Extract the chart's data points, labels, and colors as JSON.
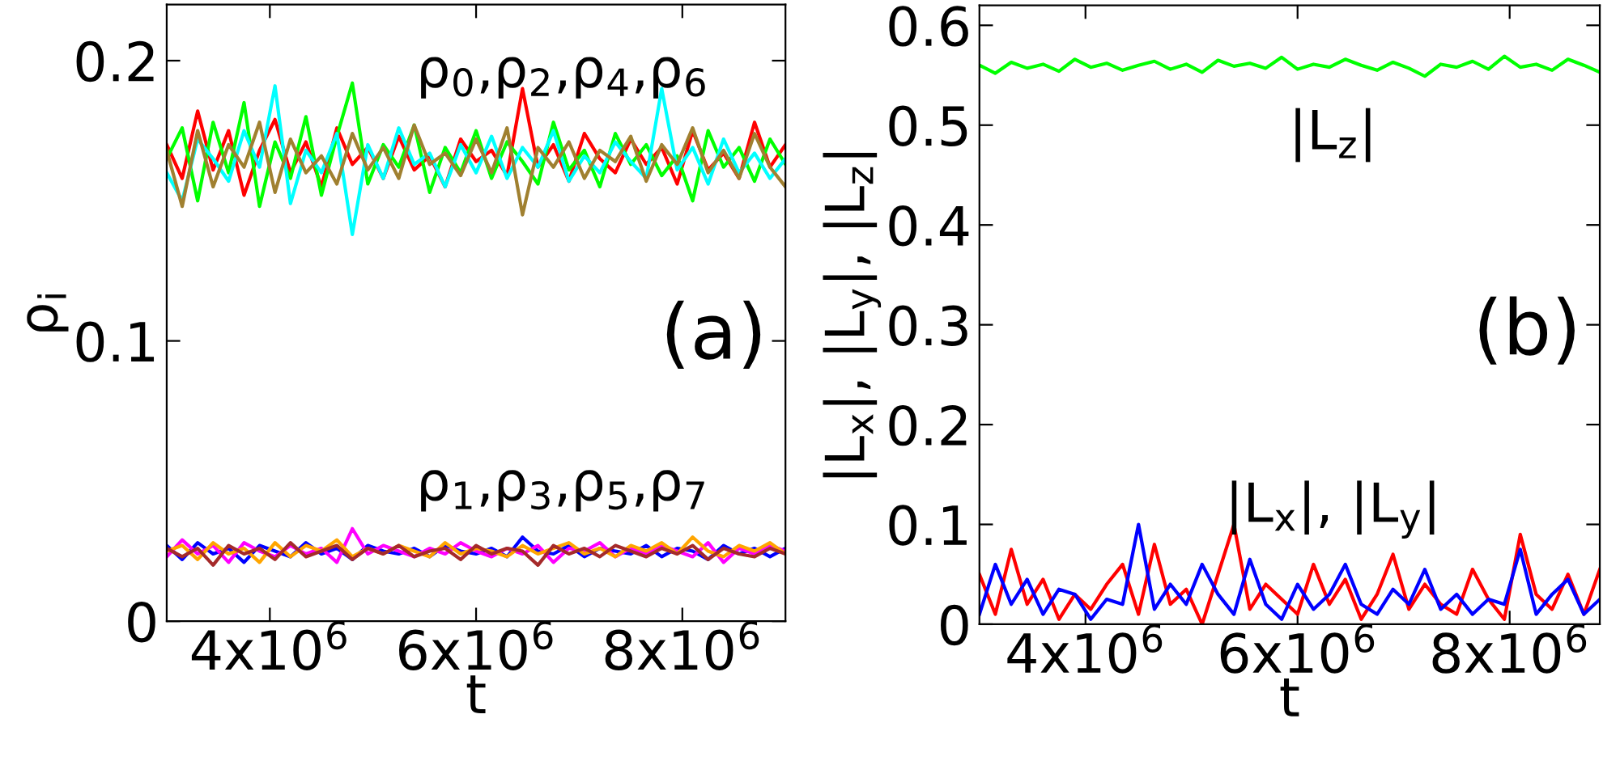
{
  "chart_data": [
    {
      "type": "line",
      "xlabel": "t",
      "ylabel": "ρ$_{i}$",
      "x": [
        3000000,
        3150000,
        3300000,
        3450000,
        3600000,
        3750000,
        3900000,
        4050000,
        4200000,
        4350000,
        4500000,
        4650000,
        4800000,
        4950000,
        5100000,
        5250000,
        5400000,
        5550000,
        5700000,
        5850000,
        6000000,
        6150000,
        6300000,
        6450000,
        6600000,
        6750000,
        6900000,
        7050000,
        7200000,
        7350000,
        7500000,
        7650000,
        7800000,
        7950000,
        8100000,
        8250000,
        8400000,
        8550000,
        8700000,
        8850000,
        9000000
      ],
      "series": [
        {
          "color": "#ff0000",
          "values": [
            0.17,
            0.158,
            0.182,
            0.161,
            0.175,
            0.152,
            0.168,
            0.179,
            0.16,
            0.171,
            0.155,
            0.176,
            0.163,
            0.169,
            0.158,
            0.173,
            0.161,
            0.166,
            0.155,
            0.172,
            0.164,
            0.168,
            0.159,
            0.19,
            0.162,
            0.17,
            0.157,
            0.174,
            0.165,
            0.16,
            0.172,
            0.163,
            0.169,
            0.156,
            0.175,
            0.161,
            0.167,
            0.158,
            0.178,
            0.162,
            0.17
          ]
        },
        {
          "color": "#00ff00",
          "values": [
            0.165,
            0.176,
            0.15,
            0.178,
            0.16,
            0.185,
            0.148,
            0.171,
            0.158,
            0.18,
            0.152,
            0.173,
            0.192,
            0.156,
            0.17,
            0.162,
            0.177,
            0.153,
            0.169,
            0.16,
            0.175,
            0.158,
            0.171,
            0.164,
            0.156,
            0.178,
            0.161,
            0.168,
            0.155,
            0.174,
            0.163,
            0.17,
            0.159,
            0.166,
            0.15,
            0.175,
            0.162,
            0.169,
            0.157,
            0.172,
            0.163
          ]
        },
        {
          "color": "#00ffff",
          "values": [
            0.16,
            0.15,
            0.172,
            0.165,
            0.157,
            0.175,
            0.162,
            0.191,
            0.149,
            0.168,
            0.16,
            0.174,
            0.138,
            0.17,
            0.158,
            0.176,
            0.163,
            0.167,
            0.155,
            0.17,
            0.16,
            0.173,
            0.158,
            0.169,
            0.162,
            0.175,
            0.157,
            0.166,
            0.16,
            0.171,
            0.164,
            0.158,
            0.19,
            0.161,
            0.169,
            0.156,
            0.172,
            0.16,
            0.167,
            0.158,
            0.165
          ]
        },
        {
          "color": "#a08030",
          "values": [
            0.168,
            0.148,
            0.175,
            0.155,
            0.17,
            0.162,
            0.178,
            0.153,
            0.172,
            0.16,
            0.166,
            0.156,
            0.174,
            0.161,
            0.169,
            0.158,
            0.177,
            0.163,
            0.167,
            0.159,
            0.172,
            0.16,
            0.176,
            0.145,
            0.169,
            0.162,
            0.171,
            0.158,
            0.168,
            0.164,
            0.173,
            0.157,
            0.17,
            0.163,
            0.176,
            0.16,
            0.168,
            0.158,
            0.174,
            0.162,
            0.155
          ]
        },
        {
          "color": "#0000ff",
          "values": [
            0.027,
            0.022,
            0.028,
            0.024,
            0.026,
            0.021,
            0.027,
            0.025,
            0.023,
            0.028,
            0.024,
            0.026,
            0.022,
            0.027,
            0.025,
            0.024,
            0.026,
            0.023,
            0.027,
            0.025,
            0.024,
            0.026,
            0.023,
            0.03,
            0.025,
            0.024,
            0.027,
            0.023,
            0.026,
            0.025,
            0.024,
            0.027,
            0.023,
            0.026,
            0.025,
            0.022,
            0.027,
            0.024,
            0.026,
            0.023,
            0.026
          ]
        },
        {
          "color": "#ff00ff",
          "values": [
            0.023,
            0.029,
            0.024,
            0.027,
            0.021,
            0.028,
            0.025,
            0.023,
            0.027,
            0.024,
            0.026,
            0.021,
            0.033,
            0.024,
            0.027,
            0.025,
            0.023,
            0.026,
            0.024,
            0.028,
            0.025,
            0.023,
            0.026,
            0.024,
            0.027,
            0.021,
            0.026,
            0.025,
            0.028,
            0.023,
            0.026,
            0.024,
            0.027,
            0.025,
            0.023,
            0.028,
            0.021,
            0.026,
            0.024,
            0.027,
            0.025
          ]
        },
        {
          "color": "#ffa500",
          "values": [
            0.025,
            0.027,
            0.022,
            0.028,
            0.024,
            0.026,
            0.021,
            0.028,
            0.023,
            0.027,
            0.025,
            0.029,
            0.023,
            0.026,
            0.024,
            0.027,
            0.025,
            0.023,
            0.028,
            0.024,
            0.026,
            0.025,
            0.023,
            0.027,
            0.024,
            0.026,
            0.028,
            0.024,
            0.026,
            0.023,
            0.027,
            0.025,
            0.028,
            0.024,
            0.03,
            0.025,
            0.023,
            0.027,
            0.025,
            0.028,
            0.024
          ]
        },
        {
          "color": "#a52a2a",
          "values": [
            0.026,
            0.023,
            0.026,
            0.02,
            0.027,
            0.024,
            0.026,
            0.022,
            0.028,
            0.023,
            0.025,
            0.027,
            0.022,
            0.026,
            0.024,
            0.027,
            0.023,
            0.025,
            0.026,
            0.022,
            0.027,
            0.024,
            0.026,
            0.025,
            0.02,
            0.027,
            0.024,
            0.026,
            0.023,
            0.027,
            0.025,
            0.023,
            0.026,
            0.024,
            0.027,
            0.022,
            0.026,
            0.024,
            0.023,
            0.026,
            0.024
          ]
        }
      ],
      "xlim": [
        3000000,
        9000000
      ],
      "xticks": [
        {
          "value": 4000000,
          "label": "4x10$^{6}$"
        },
        {
          "value": 6000000,
          "label": "6x10$^{6}$"
        },
        {
          "value": 8000000,
          "label": "8x10$^{6}$"
        }
      ],
      "ylim": [
        0,
        0.22
      ],
      "yticks": [
        0,
        0.1,
        0.2
      ],
      "annotations": [
        "ρ$_{0}$,ρ$_{2}$,ρ$_{4}$,ρ$_{6}$",
        "ρ$_{1}$,ρ$_{3}$,ρ$_{5}$,ρ$_{7}$",
        "(a)"
      ]
    },
    {
      "type": "line",
      "xlabel": "t",
      "ylabel": "|L$_{x}$|, |L$_{y}$|, |L$_{z}$|",
      "x": [
        3000000,
        3150000,
        3300000,
        3450000,
        3600000,
        3750000,
        3900000,
        4050000,
        4200000,
        4350000,
        4500000,
        4650000,
        4800000,
        4950000,
        5100000,
        5250000,
        5400000,
        5550000,
        5700000,
        5850000,
        6000000,
        6150000,
        6300000,
        6450000,
        6600000,
        6750000,
        6900000,
        7050000,
        7200000,
        7350000,
        7500000,
        7650000,
        7800000,
        7950000,
        8100000,
        8250000,
        8400000,
        8550000,
        8700000,
        8850000
      ],
      "series": [
        {
          "color": "#00ff00",
          "values": [
            0.56,
            0.552,
            0.563,
            0.557,
            0.561,
            0.554,
            0.566,
            0.558,
            0.562,
            0.555,
            0.56,
            0.564,
            0.556,
            0.561,
            0.553,
            0.565,
            0.559,
            0.562,
            0.557,
            0.568,
            0.556,
            0.561,
            0.558,
            0.566,
            0.56,
            0.555,
            0.563,
            0.557,
            0.549,
            0.561,
            0.558,
            0.564,
            0.556,
            0.569,
            0.558,
            0.561,
            0.555,
            0.566,
            0.56,
            0.553
          ]
        },
        {
          "color": "#ff0000",
          "values": [
            0.05,
            0.01,
            0.075,
            0.02,
            0.045,
            0.005,
            0.03,
            0.015,
            0.04,
            0.06,
            0.01,
            0.08,
            0.02,
            0.035,
            0.0,
            0.05,
            0.1,
            0.015,
            0.04,
            0.025,
            0.01,
            0.06,
            0.02,
            0.045,
            0.005,
            0.03,
            0.07,
            0.015,
            0.04,
            0.02,
            0.01,
            0.055,
            0.025,
            0.005,
            0.09,
            0.03,
            0.015,
            0.05,
            0.01,
            0.055
          ]
        },
        {
          "color": "#0000ff",
          "values": [
            0.01,
            0.06,
            0.02,
            0.045,
            0.01,
            0.035,
            0.03,
            0.005,
            0.025,
            0.02,
            0.1,
            0.015,
            0.04,
            0.02,
            0.06,
            0.03,
            0.01,
            0.065,
            0.02,
            0.005,
            0.04,
            0.015,
            0.03,
            0.06,
            0.02,
            0.01,
            0.035,
            0.02,
            0.055,
            0.015,
            0.03,
            0.01,
            0.025,
            0.02,
            0.075,
            0.01,
            0.03,
            0.045,
            0.01,
            0.025
          ]
        }
      ],
      "xlim": [
        3000000,
        8850000
      ],
      "xticks": [
        {
          "value": 4000000,
          "label": "4x10$^{6}$"
        },
        {
          "value": 6000000,
          "label": "6x10$^{6}$"
        },
        {
          "value": 8000000,
          "label": "8x10$^{6}$"
        }
      ],
      "ylim": [
        0,
        0.62
      ],
      "yticks": [
        0,
        0.1,
        0.2,
        0.3,
        0.4,
        0.5,
        0.6
      ],
      "annotations": [
        "|L$_{z}$|",
        "|L$_{x}$|, |L$_{y}$|",
        "(b)"
      ]
    }
  ]
}
